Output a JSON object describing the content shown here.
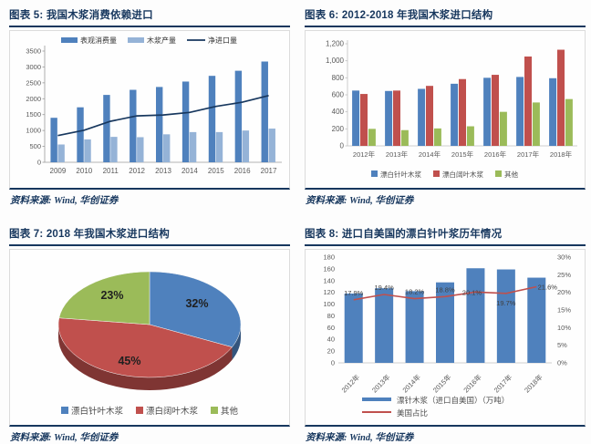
{
  "source_note": "资料来源: Wind, 华创证券",
  "colors": {
    "title_navy": "#17375E",
    "bar_blue": "#4F81BD",
    "bar_light_blue": "#95B3D7",
    "bar_red": "#C0504D",
    "bar_green": "#9BBB59",
    "line_navy": "#17375E",
    "line_red": "#C0504D"
  },
  "chart_data": [
    {
      "type": "bar+line",
      "title": "图表 5: 我国木浆消费依赖进口",
      "categories": [
        "2009",
        "2010",
        "2011",
        "2012",
        "2013",
        "2014",
        "2015",
        "2016",
        "2017"
      ],
      "series": [
        {
          "name": "表观消费量",
          "kind": "bar",
          "color": "#4F81BD",
          "values": [
            1400,
            1730,
            2120,
            2280,
            2370,
            2540,
            2720,
            2880,
            3170
          ]
        },
        {
          "name": "木浆产量",
          "kind": "bar",
          "color": "#95B3D7",
          "values": [
            560,
            720,
            800,
            790,
            880,
            950,
            950,
            1000,
            1060
          ]
        },
        {
          "name": "净进口量",
          "kind": "line",
          "color": "#17375E",
          "values": [
            840,
            1010,
            1290,
            1460,
            1490,
            1570,
            1760,
            1890,
            2100
          ]
        }
      ],
      "ylim": [
        0,
        3500
      ],
      "yticks": [
        0,
        500,
        1000,
        1500,
        2000,
        2500,
        3000,
        3500
      ],
      "legend_position": "top",
      "grid": false
    },
    {
      "type": "bar",
      "title": "图表 6: 2012-2018 年我国木浆进口结构",
      "categories": [
        "2012年",
        "2013年",
        "2014年",
        "2015年",
        "2016年",
        "2017年",
        "2018年"
      ],
      "series": [
        {
          "name": "漂白针叶木浆",
          "color": "#4F81BD",
          "values": [
            650,
            645,
            670,
            730,
            800,
            810,
            795
          ]
        },
        {
          "name": "漂白阔叶木浆",
          "color": "#C0504D",
          "values": [
            610,
            650,
            705,
            785,
            835,
            1050,
            1130
          ]
        },
        {
          "name": "其他",
          "color": "#9BBB59",
          "values": [
            200,
            185,
            205,
            230,
            400,
            510,
            550
          ]
        }
      ],
      "ylim": [
        0,
        1200
      ],
      "yticks": [
        0,
        200,
        400,
        600,
        800,
        1000,
        1200
      ],
      "ytick_labels": [
        "0",
        "200",
        "400",
        "600",
        "800",
        "1,000",
        "1,200"
      ],
      "legend_position": "bottom",
      "grid": false
    },
    {
      "type": "pie",
      "title": "图表 7: 2018 年我国木浆进口结构",
      "slices": [
        {
          "name": "漂白针叶木浆",
          "color": "#4F81BD",
          "value": 32,
          "label": "32%"
        },
        {
          "name": "漂白阔叶木浆",
          "color": "#C0504D",
          "value": 45,
          "label": "45%"
        },
        {
          "name": "其他",
          "color": "#9BBB59",
          "value": 23,
          "label": "23%"
        }
      ],
      "start_angle_deg": 0,
      "clockwise": true,
      "effect": "3d",
      "legend_position": "bottom"
    },
    {
      "type": "bar+line-dual-axis",
      "title": "图表 8: 进口自美国的漂白针叶浆历年情况",
      "categories": [
        "2012年",
        "2013年",
        "2014年",
        "2015年",
        "2016年",
        "2017年",
        "2018年"
      ],
      "bar_series": {
        "name": "漂针木浆（进口自美国）（万吨）",
        "color": "#4F81BD",
        "axis": "left",
        "values": [
          118,
          127,
          122,
          137,
          161,
          159,
          145
        ]
      },
      "line_series": {
        "name": "美国占比",
        "color": "#C0504D",
        "axis": "right",
        "values": [
          17.9,
          19.4,
          18.2,
          18.8,
          20.1,
          19.7,
          21.6
        ],
        "point_labels": [
          "17.9%",
          "19.4%",
          "18.2%",
          "18.8%",
          "20.1%",
          "19.7%",
          "21.6%"
        ]
      },
      "ylim_left": [
        0,
        180
      ],
      "yticks_left": [
        0,
        20,
        40,
        60,
        80,
        100,
        120,
        140,
        160,
        180
      ],
      "ylim_right_pct": [
        0,
        30
      ],
      "yticks_right_labels": [
        "0%",
        "5%",
        "10%",
        "15%",
        "20%",
        "25%",
        "30%"
      ],
      "legend_position": "bottom",
      "grid": false
    }
  ]
}
